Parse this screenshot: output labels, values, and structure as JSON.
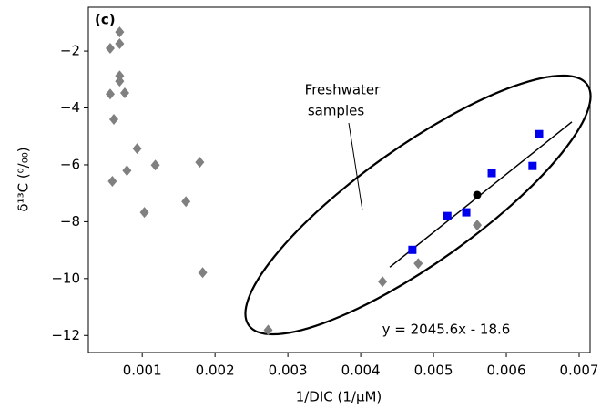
{
  "chart_data": {
    "type": "scatter",
    "panel_label": "(c)",
    "xlabel": "1/DIC (1/μM)",
    "ylabel": "δ¹³C (⁰/₀₀)",
    "annotation_lines": [
      "Freshwater",
      "samples"
    ],
    "equation": "y = 2045.6x - 18.6",
    "xlim": [
      0.00026,
      0.00715
    ],
    "ylim": [
      -12.6,
      -0.46
    ],
    "xticks": [
      0.001,
      0.002,
      0.003,
      0.004,
      0.005,
      0.006,
      0.007
    ],
    "yticks": [
      {
        "value": -2,
        "label": "−2"
      },
      {
        "value": -4,
        "label": "−4"
      },
      {
        "value": -6,
        "label": "−6"
      },
      {
        "value": -8,
        "label": "−8"
      },
      {
        "value": -10,
        "label": "−10"
      },
      {
        "value": -12,
        "label": "−12"
      }
    ],
    "grid": false,
    "series": [
      {
        "color": "#808080",
        "marker": "diamond",
        "x": [
          0.00069,
          0.00056,
          0.00069,
          0.00069,
          0.00069,
          0.00056,
          0.00076,
          0.00061,
          0.00093,
          0.00079,
          0.00059,
          0.00118,
          0.00179,
          0.00103,
          0.0016,
          0.00183,
          0.00273,
          0.0043,
          0.00479,
          0.0056
        ],
        "values": [
          -1.33,
          -1.9,
          -1.74,
          -2.87,
          -3.06,
          -3.51,
          -3.47,
          -4.4,
          -5.43,
          -6.2,
          -6.58,
          -6.01,
          -5.91,
          -7.67,
          -7.29,
          -9.79,
          -11.81,
          -10.11,
          -9.47,
          -8.12
        ]
      },
      {
        "color": "#0000ee",
        "marker": "square",
        "x": [
          0.00471,
          0.00519,
          0.00545,
          0.0058,
          0.00636,
          0.00645
        ],
        "values": [
          -8.99,
          -7.8,
          -7.67,
          -6.29,
          -6.04,
          -4.92
        ]
      },
      {
        "color": "#000000",
        "marker": "circle",
        "x": [
          0.0056
        ],
        "values": [
          -7.06
        ]
      }
    ],
    "fit_line": {
      "color": "#000000",
      "x": [
        0.0044,
        0.0069
      ],
      "y": [
        -9.6,
        -4.49
      ]
    }
  }
}
